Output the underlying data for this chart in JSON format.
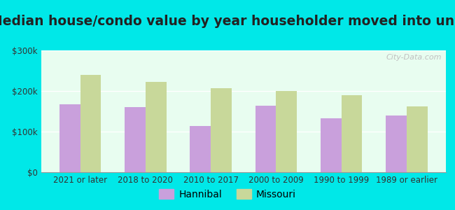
{
  "title": "Median house/condo value by year householder moved into unit",
  "categories": [
    "2021 or later",
    "2018 to 2020",
    "2010 to 2017",
    "2000 to 2009",
    "1990 to 1999",
    "1989 or earlier"
  ],
  "hannibal_values": [
    168000,
    160000,
    113000,
    163000,
    132000,
    140000
  ],
  "missouri_values": [
    240000,
    222000,
    207000,
    200000,
    190000,
    162000
  ],
  "hannibal_color": "#c9a0dc",
  "missouri_color": "#c8d89a",
  "plot_bg_top": "#e8fdf0",
  "plot_bg_bottom": "#f5fff8",
  "outer_background": "#00e8e8",
  "ylim": [
    0,
    300000
  ],
  "yticks": [
    0,
    100000,
    200000,
    300000
  ],
  "ytick_labels": [
    "$0",
    "$100k",
    "$200k",
    "$300k"
  ],
  "legend_hannibal": "Hannibal",
  "legend_missouri": "Missouri",
  "bar_width": 0.32,
  "title_fontsize": 13.5,
  "tick_fontsize": 8.5,
  "legend_fontsize": 10
}
